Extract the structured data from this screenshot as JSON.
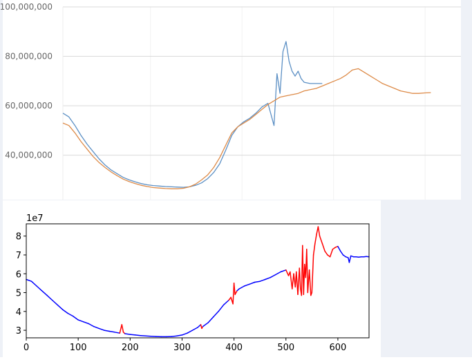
{
  "chart_data": [
    {
      "type": "line",
      "title": "",
      "xlabel": "",
      "ylabel": "",
      "x_range": [
        0,
        660
      ],
      "ylim": [
        22000000,
        100000000
      ],
      "y_ticks": [
        40000000,
        60000000,
        80000000,
        100000000
      ],
      "y_tick_labels": [
        "40,000,000",
        "60,000,000",
        "80,000,000",
        "100,000,000"
      ],
      "grid": "horizontal",
      "legend": "none",
      "series": [
        {
          "color": "#5b8fc4",
          "points": [
            [
              0,
              57000000
            ],
            [
              10,
              55500000
            ],
            [
              20,
              52000000
            ],
            [
              30,
              48000000
            ],
            [
              40,
              44500000
            ],
            [
              50,
              41500000
            ],
            [
              60,
              38500000
            ],
            [
              70,
              36000000
            ],
            [
              80,
              34000000
            ],
            [
              90,
              32500000
            ],
            [
              100,
              31000000
            ],
            [
              110,
              30000000
            ],
            [
              120,
              29200000
            ],
            [
              130,
              28500000
            ],
            [
              140,
              28000000
            ],
            [
              150,
              27700000
            ],
            [
              160,
              27500000
            ],
            [
              170,
              27300000
            ],
            [
              180,
              27200000
            ],
            [
              190,
              27100000
            ],
            [
              200,
              27000000
            ],
            [
              210,
              27200000
            ],
            [
              220,
              27800000
            ],
            [
              230,
              28800000
            ],
            [
              240,
              30500000
            ],
            [
              250,
              33000000
            ],
            [
              260,
              36500000
            ],
            [
              270,
              42000000
            ],
            [
              280,
              48000000
            ],
            [
              290,
              51500000
            ],
            [
              300,
              53500000
            ],
            [
              310,
              55000000
            ],
            [
              320,
              57000000
            ],
            [
              330,
              59500000
            ],
            [
              340,
              61000000
            ],
            [
              350,
              52000000
            ],
            [
              355,
              73000000
            ],
            [
              360,
              65000000
            ],
            [
              365,
              82000000
            ],
            [
              370,
              86000000
            ],
            [
              375,
              78000000
            ],
            [
              380,
              74000000
            ],
            [
              385,
              72000000
            ],
            [
              390,
              74000000
            ],
            [
              395,
              71000000
            ],
            [
              400,
              69500000
            ],
            [
              410,
              69000000
            ],
            [
              420,
              69000000
            ],
            [
              430,
              69000000
            ]
          ]
        },
        {
          "color": "#dd8a47",
          "points": [
            [
              0,
              53000000
            ],
            [
              10,
              52000000
            ],
            [
              20,
              49000000
            ],
            [
              30,
              45500000
            ],
            [
              40,
              42500000
            ],
            [
              50,
              39500000
            ],
            [
              60,
              37000000
            ],
            [
              70,
              35000000
            ],
            [
              80,
              33200000
            ],
            [
              90,
              31700000
            ],
            [
              100,
              30300000
            ],
            [
              110,
              29300000
            ],
            [
              120,
              28500000
            ],
            [
              130,
              27800000
            ],
            [
              140,
              27300000
            ],
            [
              150,
              26900000
            ],
            [
              160,
              26700000
            ],
            [
              170,
              26500000
            ],
            [
              180,
              26400000
            ],
            [
              190,
              26400000
            ],
            [
              200,
              26600000
            ],
            [
              210,
              27200000
            ],
            [
              220,
              28300000
            ],
            [
              230,
              30000000
            ],
            [
              240,
              32000000
            ],
            [
              250,
              35000000
            ],
            [
              260,
              39000000
            ],
            [
              270,
              44000000
            ],
            [
              280,
              49000000
            ],
            [
              290,
              51500000
            ],
            [
              300,
              53000000
            ],
            [
              310,
              54500000
            ],
            [
              320,
              56500000
            ],
            [
              330,
              58500000
            ],
            [
              340,
              60500000
            ],
            [
              350,
              62000000
            ],
            [
              360,
              63500000
            ],
            [
              370,
              64000000
            ],
            [
              380,
              64500000
            ],
            [
              390,
              65000000
            ],
            [
              400,
              66000000
            ],
            [
              410,
              66500000
            ],
            [
              420,
              67000000
            ],
            [
              430,
              68000000
            ],
            [
              440,
              69000000
            ],
            [
              450,
              70000000
            ],
            [
              460,
              71000000
            ],
            [
              470,
              72500000
            ],
            [
              480,
              74500000
            ],
            [
              490,
              75000000
            ],
            [
              500,
              73500000
            ],
            [
              510,
              72000000
            ],
            [
              520,
              70500000
            ],
            [
              530,
              69000000
            ],
            [
              540,
              68000000
            ],
            [
              550,
              67000000
            ],
            [
              560,
              66000000
            ],
            [
              570,
              65500000
            ],
            [
              580,
              65000000
            ],
            [
              590,
              65000000
            ],
            [
              600,
              65200000
            ],
            [
              610,
              65300000
            ]
          ]
        }
      ]
    },
    {
      "type": "line",
      "title": "",
      "xlabel": "",
      "ylabel": "",
      "offset_text": "1e7",
      "xlim": [
        0,
        660
      ],
      "ylim": [
        2.6,
        8.65
      ],
      "x_ticks": [
        0,
        100,
        200,
        300,
        400,
        500,
        600
      ],
      "y_ticks": [
        3,
        4,
        5,
        6,
        7,
        8
      ],
      "grid": "none",
      "legend": "none",
      "base_color": "#0000ff",
      "highlight_color": "#ff0000",
      "x": [
        0,
        10,
        20,
        30,
        40,
        50,
        60,
        70,
        80,
        90,
        100,
        110,
        120,
        130,
        140,
        150,
        160,
        170,
        180,
        184,
        187,
        190,
        200,
        210,
        220,
        230,
        240,
        250,
        260,
        270,
        280,
        290,
        300,
        310,
        320,
        330,
        336,
        338,
        340,
        350,
        360,
        370,
        380,
        390,
        394,
        398,
        400,
        402,
        404,
        406,
        410,
        420,
        430,
        440,
        450,
        460,
        470,
        480,
        490,
        500,
        505,
        508,
        512,
        515,
        518,
        520,
        523,
        526,
        528,
        530,
        532,
        534,
        536,
        538,
        540,
        542,
        545,
        548,
        550,
        553,
        556,
        559,
        562,
        565,
        570,
        575,
        580,
        585,
        590,
        595,
        600,
        605,
        610,
        615,
        620,
        622,
        625,
        630,
        635,
        640,
        645,
        650,
        655,
        660
      ],
      "values": [
        5.7,
        5.6,
        5.35,
        5.1,
        4.85,
        4.6,
        4.35,
        4.1,
        3.9,
        3.75,
        3.55,
        3.45,
        3.35,
        3.2,
        3.1,
        3.0,
        2.95,
        2.9,
        2.85,
        3.3,
        2.9,
        2.82,
        2.78,
        2.75,
        2.72,
        2.7,
        2.68,
        2.67,
        2.66,
        2.66,
        2.67,
        2.7,
        2.75,
        2.85,
        3.0,
        3.15,
        3.3,
        3.1,
        3.2,
        3.4,
        3.7,
        4.0,
        4.35,
        4.6,
        4.75,
        4.4,
        5.5,
        4.9,
        5.0,
        5.1,
        5.2,
        5.35,
        5.45,
        5.55,
        5.6,
        5.7,
        5.8,
        5.95,
        6.1,
        6.2,
        5.9,
        6.1,
        5.2,
        6.0,
        5.3,
        6.1,
        4.9,
        6.3,
        5.2,
        4.85,
        7.5,
        4.9,
        6.5,
        5.8,
        7.3,
        5.0,
        6.2,
        4.85,
        5.0,
        7.0,
        7.6,
        8.1,
        8.5,
        8.0,
        7.6,
        7.2,
        7.0,
        6.9,
        7.3,
        7.4,
        7.45,
        7.2,
        7.0,
        6.9,
        6.85,
        6.6,
        6.95,
        6.9,
        6.9,
        6.88,
        6.9,
        6.9,
        6.92,
        6.9
      ],
      "highlight_ranges": [
        [
          180,
          190
        ],
        [
          334,
          340
        ],
        [
          390,
          408
        ],
        [
          500,
          600
        ]
      ]
    }
  ]
}
